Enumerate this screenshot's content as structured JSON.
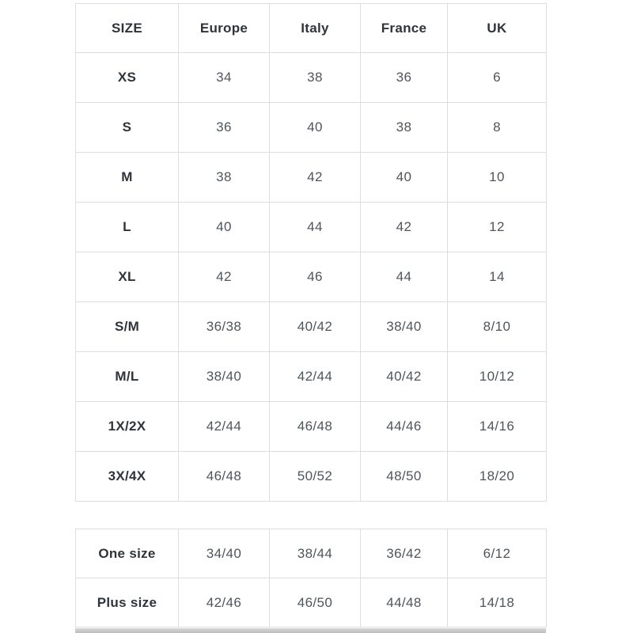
{
  "size_chart": {
    "headers": [
      "SIZE",
      "Europe",
      "Italy",
      "France",
      "UK"
    ],
    "rows": [
      [
        "XS",
        "34",
        "38",
        "36",
        "6"
      ],
      [
        "S",
        "36",
        "40",
        "38",
        "8"
      ],
      [
        "M",
        "38",
        "42",
        "40",
        "10"
      ],
      [
        "L",
        "40",
        "44",
        "42",
        "12"
      ],
      [
        "XL",
        "42",
        "46",
        "44",
        "14"
      ],
      [
        "S/M",
        "36/38",
        "40/42",
        "38/40",
        "8/10"
      ],
      [
        "M/L",
        "38/40",
        "42/44",
        "40/42",
        "10/12"
      ],
      [
        "1X/2X",
        "42/44",
        "46/48",
        "44/46",
        "14/16"
      ],
      [
        "3X/4X",
        "46/48",
        "50/52",
        "48/50",
        "18/20"
      ]
    ]
  },
  "special_sizes": {
    "rows": [
      [
        "One size",
        "34/40",
        "38/44",
        "36/42",
        "6/12"
      ],
      [
        "Plus size",
        "42/46",
        "46/50",
        "44/48",
        "14/18"
      ]
    ]
  },
  "colors": {
    "header_text": "#2e343a",
    "value_text": "#4f555c",
    "border": "#dedede",
    "background": "#ffffff"
  }
}
